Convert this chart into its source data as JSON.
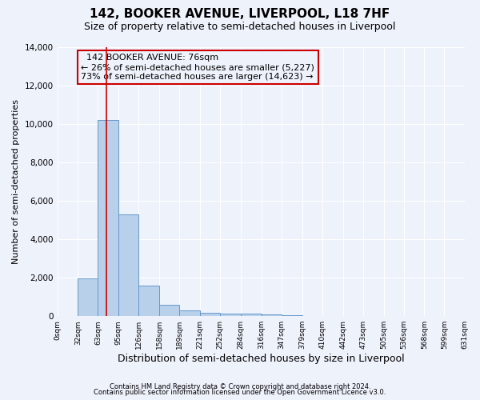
{
  "title": "142, BOOKER AVENUE, LIVERPOOL, L18 7HF",
  "subtitle": "Size of property relative to semi-detached houses in Liverpool",
  "xlabel": "Distribution of semi-detached houses by size in Liverpool",
  "ylabel": "Number of semi-detached properties",
  "footer1": "Contains HM Land Registry data © Crown copyright and database right 2024.",
  "footer2": "Contains public sector information licensed under the Open Government Licence v3.0.",
  "annotation_title": "142 BOOKER AVENUE: 76sqm",
  "annotation_line1": "← 26% of semi-detached houses are smaller (5,227)",
  "annotation_line2": "73% of semi-detached houses are larger (14,623) →",
  "property_size": 76,
  "bar_left_edges": [
    0,
    32,
    63,
    95,
    126,
    158,
    189,
    221,
    252,
    284,
    316,
    347,
    379,
    410,
    442,
    473,
    505,
    536,
    568,
    599
  ],
  "bar_heights": [
    0,
    1950,
    10200,
    5300,
    1600,
    580,
    290,
    180,
    150,
    140,
    100,
    50,
    0,
    0,
    0,
    0,
    0,
    0,
    0,
    0
  ],
  "bar_color": "#b8d0ea",
  "bar_edge_color": "#6699cc",
  "vline_color": "#cc0000",
  "annotation_box_color": "#cc0000",
  "background_color": "#eef2fb",
  "grid_color": "#ffffff",
  "ylim": [
    0,
    14000
  ],
  "yticks": [
    0,
    2000,
    4000,
    6000,
    8000,
    10000,
    12000,
    14000
  ],
  "x_tick_labels": [
    "0sqm",
    "32sqm",
    "63sqm",
    "95sqm",
    "126sqm",
    "158sqm",
    "189sqm",
    "221sqm",
    "252sqm",
    "284sqm",
    "316sqm",
    "347sqm",
    "379sqm",
    "410sqm",
    "442sqm",
    "473sqm",
    "505sqm",
    "536sqm",
    "568sqm",
    "599sqm",
    "631sqm"
  ],
  "title_fontsize": 11,
  "subtitle_fontsize": 9,
  "annotation_fontsize": 8,
  "xlabel_fontsize": 9,
  "ylabel_fontsize": 8
}
